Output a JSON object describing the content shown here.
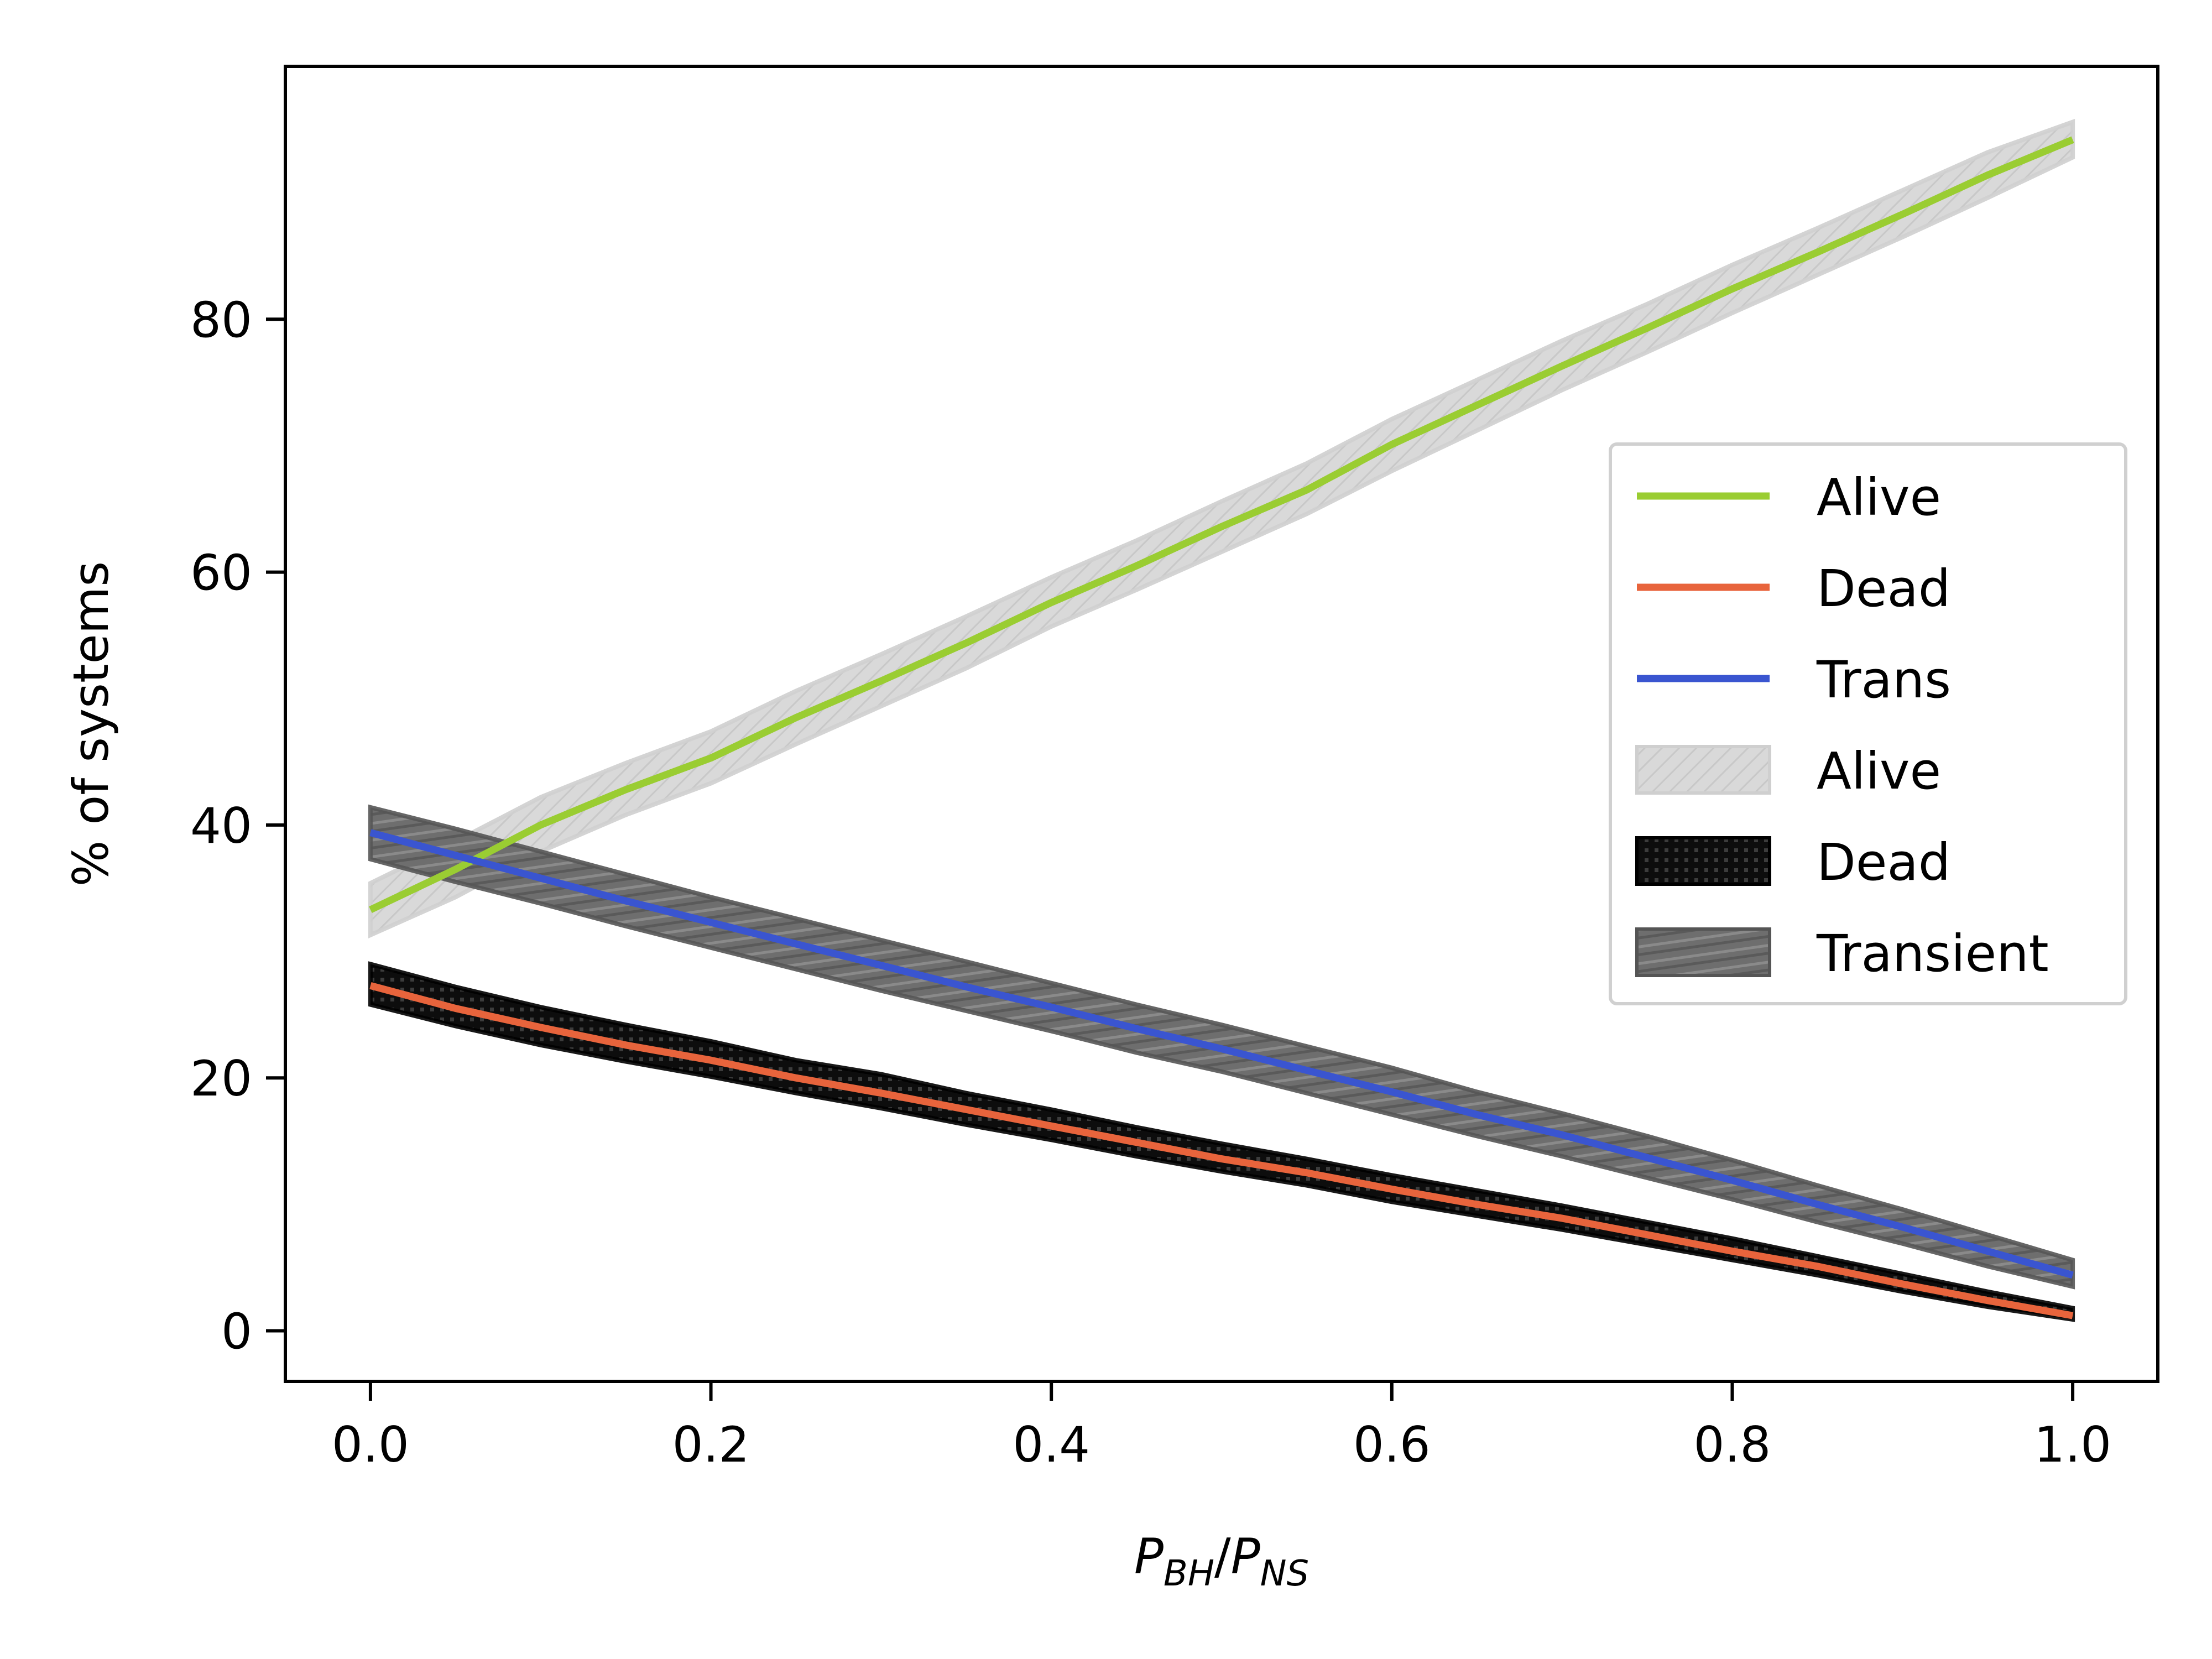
{
  "chart_data": {
    "type": "line",
    "xlabel": {
      "main1": "P",
      "sub1": "BH",
      "sep": "/",
      "main2": "P",
      "sub2": "NS"
    },
    "ylabel": "% of systems",
    "xlim": [
      -0.05,
      1.05
    ],
    "ylim": [
      -4,
      100
    ],
    "xticks": [
      "0.0",
      "0.2",
      "0.4",
      "0.6",
      "0.8",
      "1.0"
    ],
    "yticks": [
      "0",
      "20",
      "40",
      "60",
      "80"
    ],
    "grid": false,
    "legend_position": "center-right",
    "x": [
      0.0,
      0.05,
      0.1,
      0.15,
      0.2,
      0.25,
      0.3,
      0.35,
      0.4,
      0.45,
      0.5,
      0.55,
      0.6,
      0.65,
      0.7,
      0.75,
      0.8,
      0.85,
      0.9,
      0.95,
      1.0
    ],
    "series": [
      {
        "name": "Alive",
        "color": "#9acd32",
        "values": [
          33.3,
          36.5,
          40.0,
          42.8,
          45.3,
          48.5,
          51.4,
          54.4,
          57.6,
          60.5,
          63.6,
          66.5,
          70.1,
          73.2,
          76.3,
          79.3,
          82.4,
          85.3,
          88.3,
          91.4,
          94.2
        ]
      },
      {
        "name": "Dead",
        "color": "#e8643c",
        "values": [
          27.3,
          25.5,
          24.0,
          22.6,
          21.4,
          20.0,
          18.8,
          17.5,
          16.2,
          14.9,
          13.6,
          12.5,
          11.2,
          10.0,
          8.9,
          7.6,
          6.3,
          5.1,
          3.7,
          2.4,
          1.2
        ]
      },
      {
        "name": "Trans",
        "color": "#3a55d0",
        "values": [
          39.4,
          37.6,
          35.8,
          34.0,
          32.3,
          30.6,
          28.9,
          27.2,
          25.6,
          23.9,
          22.3,
          20.6,
          18.9,
          17.1,
          15.5,
          13.7,
          11.9,
          10.0,
          8.2,
          6.3,
          4.4
        ]
      }
    ],
    "bands": [
      {
        "name": "Alive",
        "fill": "#d9d9d9",
        "edge": "#cfcfcf",
        "pattern": "hatch",
        "lower": [
          31.3,
          34.3,
          37.9,
          40.8,
          43.3,
          46.4,
          49.4,
          52.4,
          55.7,
          58.6,
          61.6,
          64.6,
          68.0,
          71.2,
          74.4,
          77.4,
          80.5,
          83.5,
          86.5,
          89.6,
          92.8
        ],
        "upper": [
          35.4,
          38.7,
          42.2,
          44.9,
          47.4,
          50.6,
          53.5,
          56.5,
          59.6,
          62.5,
          65.6,
          68.6,
          72.1,
          75.2,
          78.3,
          81.2,
          84.3,
          87.2,
          90.2,
          93.2,
          95.6
        ]
      },
      {
        "name": "Dead",
        "fill": "#0d0d0d",
        "edge": "#000000",
        "pattern": "dots",
        "lower": [
          25.8,
          24.1,
          22.6,
          21.3,
          20.1,
          18.8,
          17.6,
          16.3,
          15.1,
          13.8,
          12.6,
          11.5,
          10.2,
          9.1,
          8.0,
          6.8,
          5.6,
          4.4,
          3.1,
          1.9,
          0.9
        ],
        "upper": [
          29.0,
          27.2,
          25.6,
          24.2,
          22.9,
          21.4,
          20.3,
          18.8,
          17.5,
          16.1,
          14.8,
          13.6,
          12.3,
          11.1,
          9.9,
          8.6,
          7.3,
          5.9,
          4.5,
          3.1,
          1.8
        ]
      },
      {
        "name": "Transient",
        "fill": "#6e6e6e",
        "edge": "#555555",
        "pattern": "stripes",
        "lower": [
          37.3,
          35.5,
          33.8,
          32.0,
          30.3,
          28.6,
          26.9,
          25.3,
          23.7,
          22.0,
          20.5,
          18.8,
          17.1,
          15.4,
          13.8,
          12.1,
          10.4,
          8.6,
          6.9,
          5.1,
          3.5
        ],
        "upper": [
          41.4,
          39.7,
          37.9,
          36.1,
          34.3,
          32.6,
          30.9,
          29.2,
          27.5,
          25.8,
          24.2,
          22.5,
          20.8,
          18.9,
          17.2,
          15.4,
          13.5,
          11.5,
          9.6,
          7.6,
          5.6
        ]
      }
    ],
    "legend": [
      "Alive",
      "Dead",
      "Trans",
      "Alive",
      "Dead",
      "Transient"
    ]
  }
}
